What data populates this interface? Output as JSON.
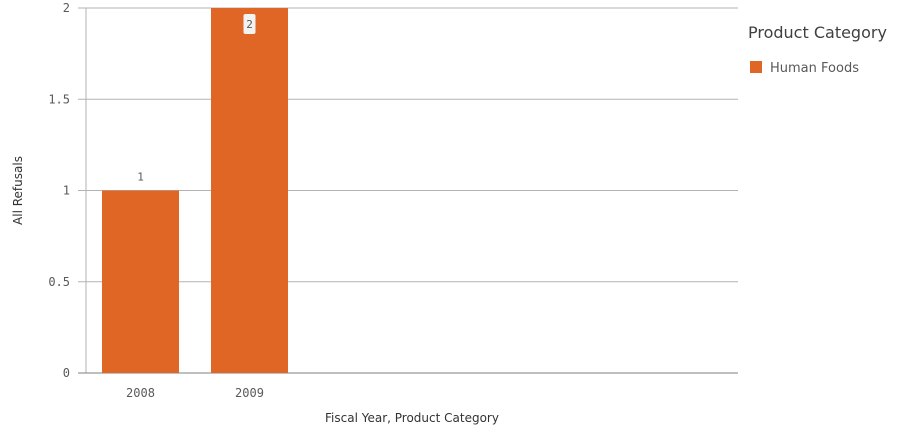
{
  "chart_data": {
    "type": "bar",
    "categories": [
      "2008",
      "2009"
    ],
    "series": [
      {
        "name": "Human Foods",
        "values": [
          1,
          2
        ],
        "color": "#e06626"
      }
    ],
    "xlabel": "Fiscal Year, Product Category",
    "ylabel": "All Refusals",
    "ylim": [
      0,
      2
    ],
    "yticks": [
      0,
      0.5,
      1,
      1.5,
      2
    ],
    "ytick_labels": [
      "0",
      "0.5",
      "1",
      "1.5",
      "2"
    ],
    "data_labels": [
      "1",
      "2"
    ],
    "grid": true,
    "legend": {
      "title": "Product Category",
      "position": "right"
    }
  }
}
